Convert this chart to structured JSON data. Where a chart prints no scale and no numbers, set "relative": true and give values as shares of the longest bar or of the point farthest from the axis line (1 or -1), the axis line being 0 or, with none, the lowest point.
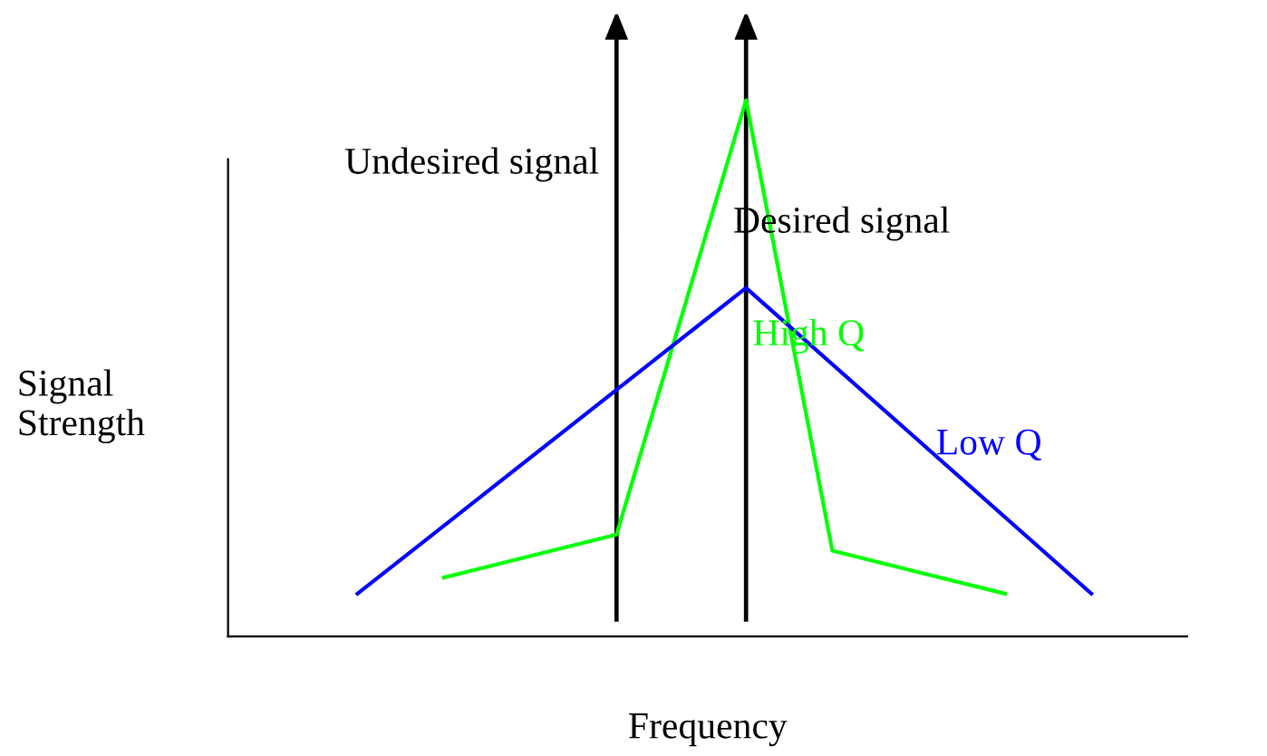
{
  "chart_data": {
    "type": "line",
    "relative": true,
    "xlabel": "Frequency",
    "ylabel": "Signal\nStrength",
    "tick_labels": false,
    "marker": "none",
    "line_style": "solid",
    "categories": [
      null,
      null,
      null,
      null,
      null,
      null,
      null,
      null,
      null,
      null,
      null,
      null,
      null,
      null,
      null,
      null,
      null,
      null,
      null,
      null,
      null
    ],
    "series": [
      {
        "name": "High Q",
        "color": "#00ff00",
        "values": [
          null,
          null,
          null,
          null,
          null,
          0.11,
          null,
          null,
          null,
          0.19,
          null,
          null,
          1,
          null,
          0.16,
          null,
          null,
          null,
          0.08,
          null,
          null
        ]
      },
      {
        "name": "Low Q",
        "color": "#0000ff",
        "values": [
          null,
          null,
          null,
          0.08,
          null,
          null,
          null,
          null,
          null,
          null,
          null,
          null,
          0.65,
          null,
          null,
          null,
          null,
          null,
          null,
          null,
          0.08
        ]
      }
    ],
    "annotations": [
      "Undesired signal",
      "Desired signal"
    ]
  }
}
